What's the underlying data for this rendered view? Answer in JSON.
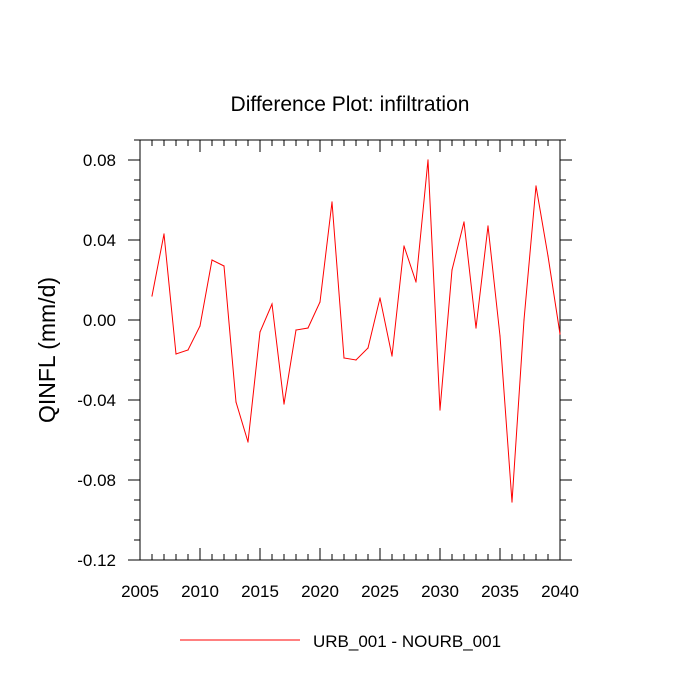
{
  "chart_data": {
    "type": "line",
    "title": "Difference Plot: infiltration",
    "xlabel": "",
    "ylabel": "QINFL  (mm/d)",
    "xlim": [
      2005,
      2040
    ],
    "ylim": [
      -0.12,
      0.09
    ],
    "x_ticks": [
      2005,
      2010,
      2015,
      2020,
      2025,
      2030,
      2035,
      2040
    ],
    "x_tick_labels": [
      "2005",
      "2010",
      "2015",
      "2020",
      "2025",
      "2030",
      "2035",
      "2040"
    ],
    "y_ticks": [
      -0.12,
      -0.08,
      -0.04,
      0.0,
      0.04,
      0.08
    ],
    "y_tick_labels": [
      "-0.12",
      "-0.08",
      "-0.04",
      "0.00",
      "0.04",
      "0.08"
    ],
    "grid": false,
    "legend_position": "bottom-center",
    "series": [
      {
        "name": "URB_001 - NOURB_001",
        "color": "#ff0000",
        "x": [
          2006,
          2007,
          2008,
          2009,
          2010,
          2011,
          2012,
          2013,
          2014,
          2015,
          2016,
          2017,
          2018,
          2019,
          2020,
          2021,
          2022,
          2023,
          2024,
          2025,
          2026,
          2027,
          2028,
          2029,
          2030,
          2031,
          2032,
          2033,
          2034,
          2035,
          2036,
          2037,
          2038,
          2039,
          2040
        ],
        "values": [
          0.012,
          0.043,
          -0.017,
          -0.015,
          -0.003,
          0.03,
          0.027,
          -0.041,
          -0.061,
          -0.006,
          0.008,
          -0.042,
          -0.005,
          -0.004,
          0.009,
          0.059,
          -0.019,
          -0.02,
          -0.014,
          0.011,
          -0.018,
          0.037,
          0.019,
          0.08,
          -0.045,
          0.025,
          0.049,
          -0.004,
          0.047,
          -0.008,
          -0.091,
          0.0,
          0.067,
          0.032,
          -0.007
        ]
      }
    ]
  }
}
